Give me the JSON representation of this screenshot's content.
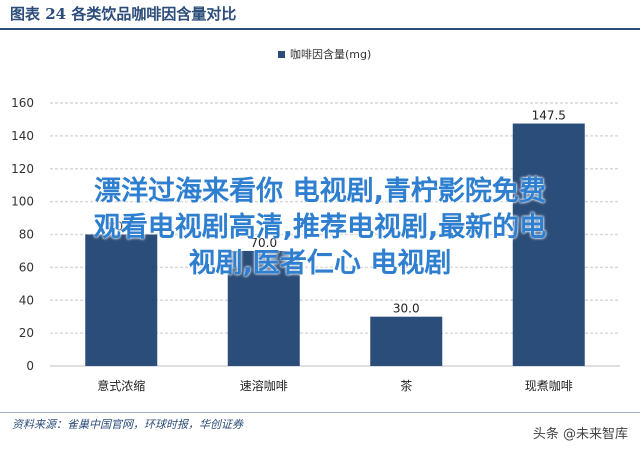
{
  "header": {
    "title": "图表 24    各类饮品咖啡因含量对比"
  },
  "chart_data": {
    "type": "bar",
    "categories": [
      "意式浓缩",
      "速溶咖啡",
      "茶",
      "现煮咖啡"
    ],
    "series": [
      {
        "name": "咖啡因含量(mg)",
        "values": [
          80.0,
          70.0,
          30.0,
          147.5
        ]
      }
    ],
    "value_labels": [
      "80.0",
      "70.0",
      "30.0",
      "147.5"
    ],
    "yticks": [
      "0",
      "20",
      "40",
      "60",
      "80",
      "100",
      "120",
      "140",
      "160"
    ],
    "ylim": [
      0,
      160
    ],
    "grid": true,
    "legend_position": "top-center",
    "bar_color": "#2b4d7a"
  },
  "overlay": {
    "lines": [
      "漂洋过海来看你 电视剧,青柠影院免费",
      "观看电视剧高清,推荐电视剧,最新的电",
      "视剧,医者仁心 电视剧"
    ]
  },
  "footer": {
    "source": "资料来源：雀巢中国官网，环球时报，华创证券",
    "watermark": "头条 @未来智库"
  }
}
